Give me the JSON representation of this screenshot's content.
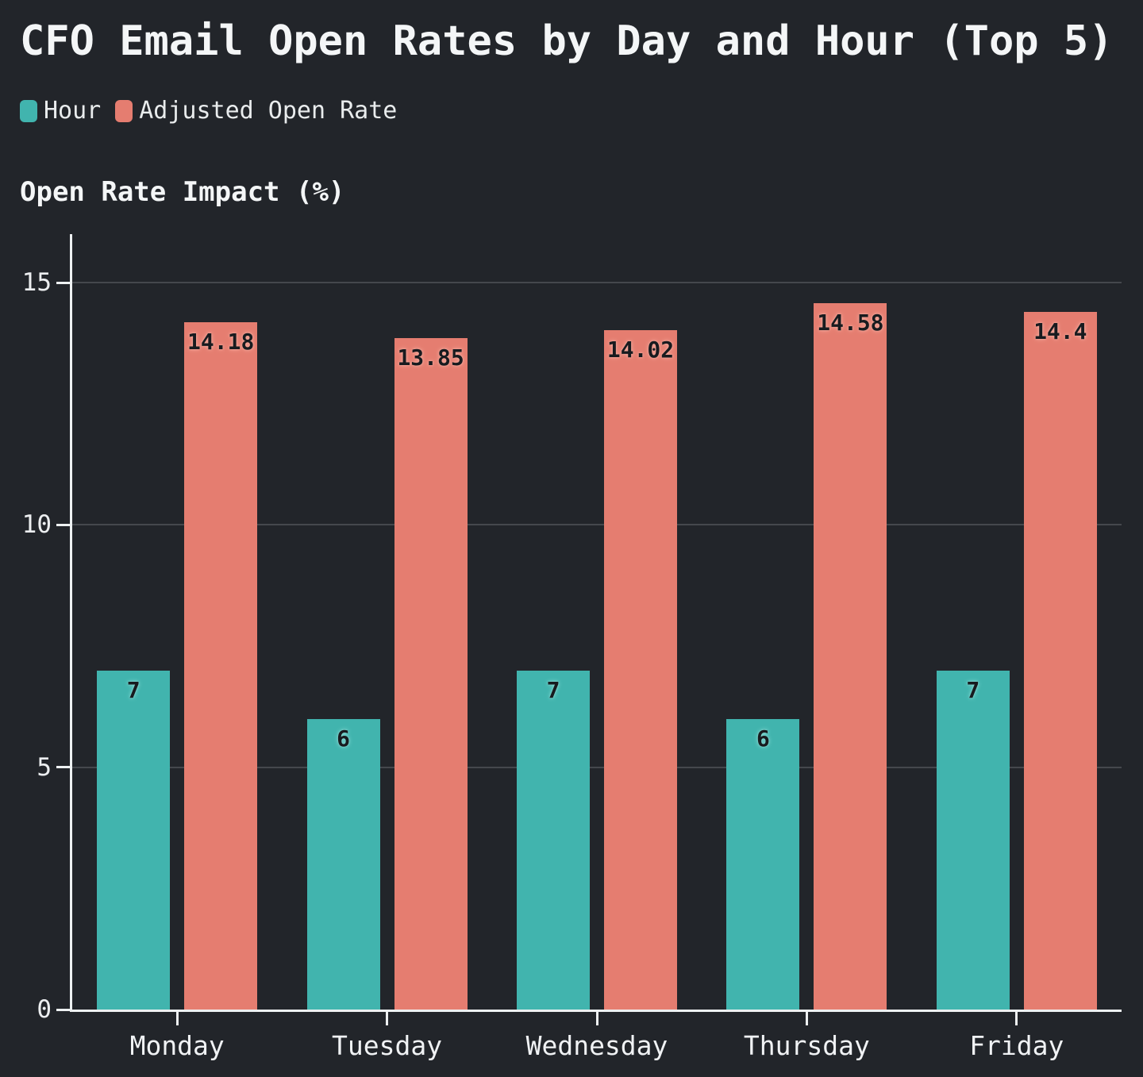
{
  "title": "CFO Email Open Rates by Day and Hour (Top 5)",
  "axis_title": "Open Rate Impact (%)",
  "colors": {
    "background": "#22252a",
    "text": "#f4f6f7",
    "gridline": "#45484d",
    "axis_line": "#eef1f2",
    "hour_series": "#41b4ae",
    "adjusted_series": "#e57d70",
    "bar_label_text": "#181b1f"
  },
  "chart_data": {
    "type": "bar",
    "title": "CFO Email Open Rates by Day and Hour (Top 5)",
    "categories": [
      "Monday",
      "Tuesday",
      "Wednesday",
      "Thursday",
      "Friday"
    ],
    "series": [
      {
        "name": "Hour",
        "values": [
          7,
          6,
          7,
          6,
          7
        ],
        "labels": [
          "7",
          "6",
          "7",
          "6",
          "7"
        ],
        "color": "#41b4ae",
        "glow_class": "glow-teal"
      },
      {
        "name": "Adjusted Open Rate",
        "values": [
          14.18,
          13.85,
          14.02,
          14.58,
          14.4
        ],
        "labels": [
          "14.18",
          "13.85",
          "14.02",
          "14.58",
          "14.4"
        ],
        "color": "#e57d70",
        "glow_class": "glow-salmon"
      }
    ],
    "xlabel": "",
    "ylabel": "Open Rate Impact (%)",
    "ylim": [
      0,
      16
    ],
    "yticks": [
      0,
      5,
      10,
      15
    ],
    "grid": true,
    "legend_position": "top-left"
  }
}
